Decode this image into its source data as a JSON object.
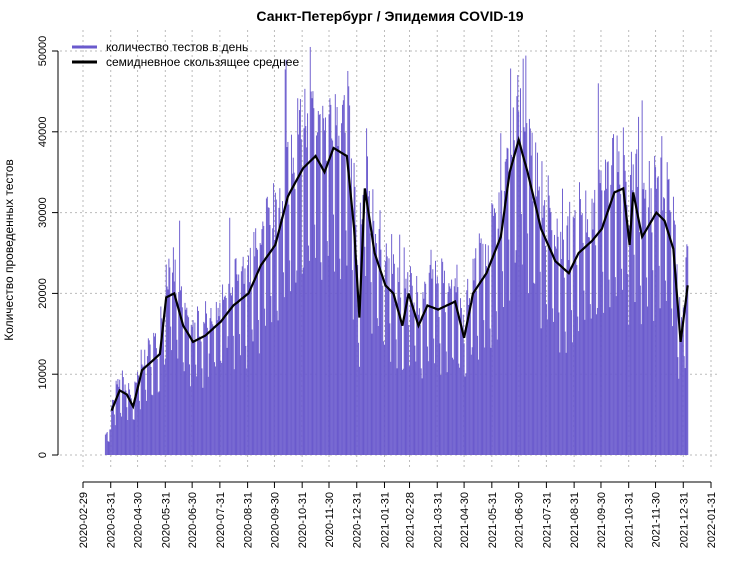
{
  "chart_data": {
    "type": "bar",
    "title": "Санкт-Петербург / Эпидемия COVID-19",
    "xlabel": "",
    "ylabel": "Количество проведенных тестов",
    "ylim": [
      0,
      50000
    ],
    "yticks": [
      0,
      10000,
      20000,
      30000,
      40000,
      50000
    ],
    "xlim": [
      "2020-02-29",
      "2022-01-31"
    ],
    "xticks": [
      "2020-02-29",
      "2020-03-31",
      "2020-04-30",
      "2020-05-31",
      "2020-06-30",
      "2020-07-31",
      "2020-08-31",
      "2020-09-30",
      "2020-10-31",
      "2020-11-30",
      "2020-12-31",
      "2021-01-31",
      "2021-02-28",
      "2021-03-31",
      "2021-04-30",
      "2021-05-31",
      "2021-06-30",
      "2021-07-31",
      "2021-08-31",
      "2021-09-30",
      "2021-10-31",
      "2021-11-30",
      "2021-12-31",
      "2022-01-31"
    ],
    "grid": true,
    "legend_position": "top-left",
    "series": [
      {
        "name": "количество тестов в день",
        "type": "bar",
        "color": "#6a5acd",
        "range": [
          "2020-03-25",
          "2022-01-05"
        ]
      },
      {
        "name": "семидневное скользящее среднее",
        "type": "line",
        "color": "#000000",
        "points": [
          [
            "2020-04-01",
            5500
          ],
          [
            "2020-04-10",
            8000
          ],
          [
            "2020-04-18",
            7500
          ],
          [
            "2020-04-25",
            6000
          ],
          [
            "2020-05-05",
            10500
          ],
          [
            "2020-05-15",
            11500
          ],
          [
            "2020-05-25",
            12500
          ],
          [
            "2020-06-01",
            19500
          ],
          [
            "2020-06-10",
            20000
          ],
          [
            "2020-06-20",
            16000
          ],
          [
            "2020-07-01",
            14000
          ],
          [
            "2020-07-15",
            14800
          ],
          [
            "2020-08-01",
            16500
          ],
          [
            "2020-08-15",
            18500
          ],
          [
            "2020-09-01",
            20000
          ],
          [
            "2020-09-15",
            23500
          ],
          [
            "2020-10-01",
            26000
          ],
          [
            "2020-10-15",
            32000
          ],
          [
            "2020-11-01",
            35500
          ],
          [
            "2020-11-15",
            37000
          ],
          [
            "2020-11-25",
            35000
          ],
          [
            "2020-12-05",
            38000
          ],
          [
            "2020-12-20",
            37000
          ],
          [
            "2020-12-28",
            28000
          ],
          [
            "2021-01-03",
            17000
          ],
          [
            "2021-01-09",
            33000
          ],
          [
            "2021-01-20",
            25000
          ],
          [
            "2021-02-01",
            21000
          ],
          [
            "2021-02-10",
            20000
          ],
          [
            "2021-02-20",
            16000
          ],
          [
            "2021-02-27",
            20000
          ],
          [
            "2021-03-10",
            16000
          ],
          [
            "2021-03-20",
            18500
          ],
          [
            "2021-04-01",
            18000
          ],
          [
            "2021-04-20",
            19000
          ],
          [
            "2021-04-30",
            14500
          ],
          [
            "2021-05-10",
            20000
          ],
          [
            "2021-05-25",
            22500
          ],
          [
            "2021-06-10",
            27000
          ],
          [
            "2021-06-20",
            35000
          ],
          [
            "2021-06-30",
            39000
          ],
          [
            "2021-07-10",
            35000
          ],
          [
            "2021-07-25",
            28000
          ],
          [
            "2021-08-10",
            24000
          ],
          [
            "2021-08-25",
            22500
          ],
          [
            "2021-09-05",
            25000
          ],
          [
            "2021-09-20",
            26500
          ],
          [
            "2021-10-01",
            28000
          ],
          [
            "2021-10-15",
            32500
          ],
          [
            "2021-10-25",
            33000
          ],
          [
            "2021-11-01",
            26000
          ],
          [
            "2021-11-05",
            32500
          ],
          [
            "2021-11-15",
            27000
          ],
          [
            "2021-12-01",
            30000
          ],
          [
            "2021-12-10",
            29000
          ],
          [
            "2021-12-20",
            25500
          ],
          [
            "2021-12-28",
            14000
          ],
          [
            "2022-01-05",
            21000
          ]
        ]
      }
    ]
  }
}
